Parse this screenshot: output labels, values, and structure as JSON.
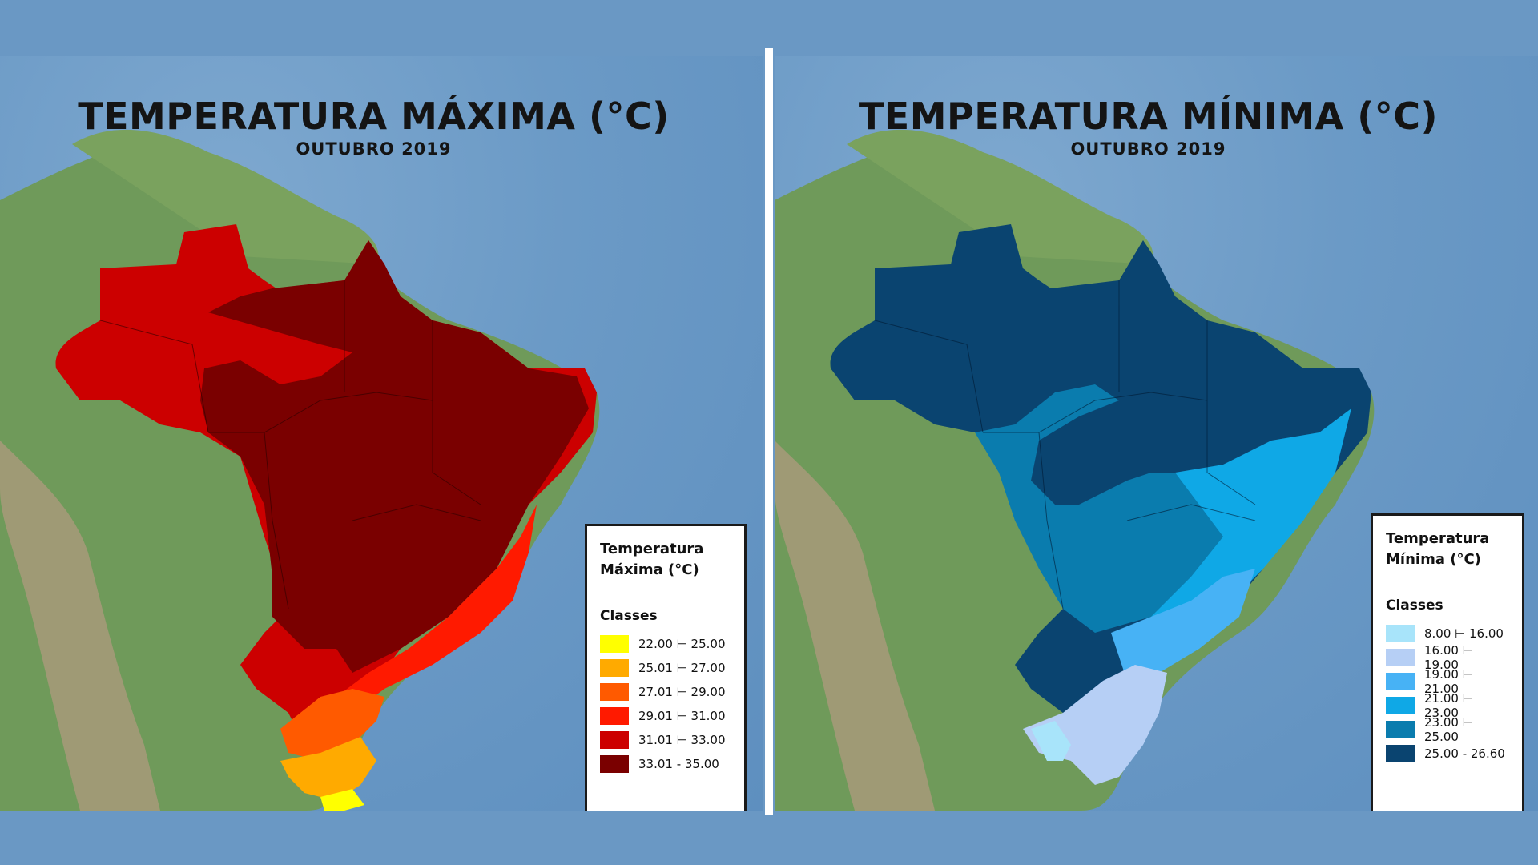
{
  "maps": {
    "max": {
      "title": "TEMPERATURA MÁXIMA (°C)",
      "subtitle": "OUTUBRO 2019",
      "legend": {
        "title_line1": "Temperatura",
        "title_line2": "Máxima (°C)",
        "classes_label": "Classes",
        "items": [
          {
            "label": "22.00 ⊢ 25.00",
            "color": "#ffff00"
          },
          {
            "label": "25.01 ⊢ 27.00",
            "color": "#ffaa00"
          },
          {
            "label": "27.01 ⊢ 29.00",
            "color": "#ff5a00"
          },
          {
            "label": "29.01 ⊢ 31.00",
            "color": "#ff1a00"
          },
          {
            "label": "31.01 ⊢ 33.00",
            "color": "#cc0000"
          },
          {
            "label": "33.01 - 35.00",
            "color": "#7a0000"
          }
        ]
      }
    },
    "min": {
      "title": "TEMPERATURA MÍNIMA (°C)",
      "subtitle": "OUTUBRO 2019",
      "legend": {
        "title_line1": "Temperatura",
        "title_line2": "Mínima (°C)",
        "classes_label": "Classes",
        "items": [
          {
            "label": "8.00 ⊢ 16.00",
            "color": "#a8e4fa"
          },
          {
            "label": "16.00 ⊢ 19.00",
            "color": "#b6cff5"
          },
          {
            "label": "19.00 ⊢ 21.00",
            "color": "#47b2f5"
          },
          {
            "label": "21.00 ⊢ 23.00",
            "color": "#0fa8e6"
          },
          {
            "label": "23.00 ⊢ 25.00",
            "color": "#0a7cae"
          },
          {
            "label": "25.00 - 26.60",
            "color": "#0a4470"
          }
        ]
      }
    }
  }
}
